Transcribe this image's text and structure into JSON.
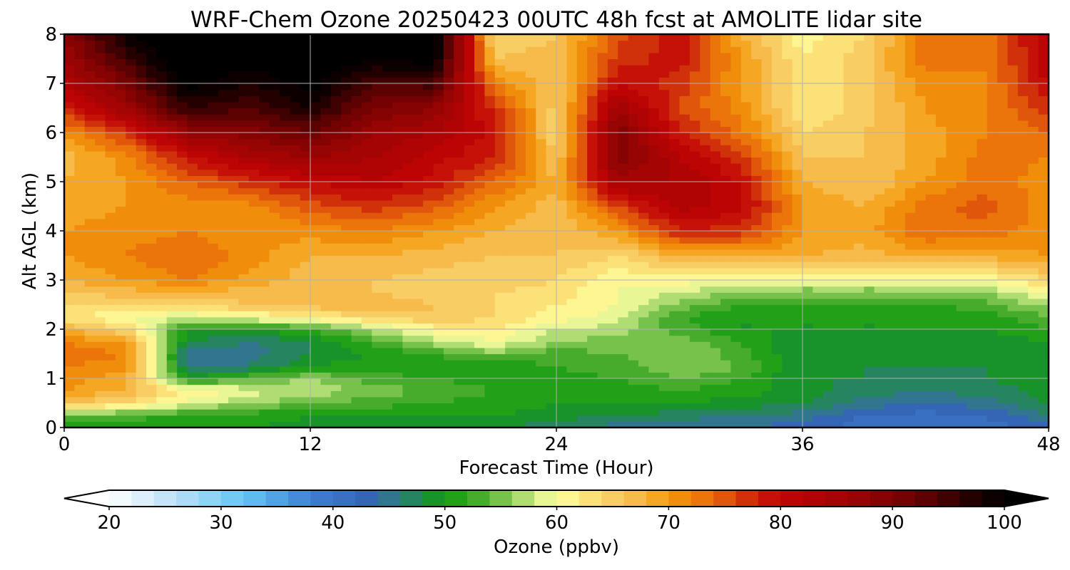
{
  "chart_data": {
    "type": "heatmap",
    "title": "WRF-Chem Ozone  20250423 00UTC 48h fcst at AMOLITE lidar site",
    "xlabel": "Forecast Time (Hour)",
    "ylabel": "Alt AGL (km)",
    "xlim": [
      0,
      48
    ],
    "ylim": [
      0,
      8
    ],
    "xticks": [
      0,
      12,
      24,
      36,
      48
    ],
    "yticks": [
      0,
      1,
      2,
      3,
      4,
      5,
      6,
      7,
      8
    ],
    "grid": true,
    "x": [
      0,
      3,
      6,
      9,
      12,
      15,
      18,
      21,
      24,
      27,
      30,
      33,
      36,
      39,
      42,
      45,
      48
    ],
    "y": [
      0,
      0.25,
      0.5,
      0.75,
      1,
      1.25,
      1.5,
      1.75,
      2,
      2.25,
      2.5,
      2.75,
      3,
      3.5,
      4,
      4.5,
      5,
      5.5,
      6,
      6.5,
      7,
      7.5,
      8
    ],
    "z": [
      [
        49,
        50,
        50,
        50,
        49,
        48,
        49,
        48,
        47,
        45,
        44,
        44,
        43,
        41,
        40,
        41,
        43
      ],
      [
        55,
        53,
        52,
        51,
        50,
        50,
        50,
        50,
        49,
        48,
        47,
        46,
        45,
        42,
        41,
        42,
        46
      ],
      [
        66,
        64,
        59,
        56,
        54,
        53,
        52,
        51,
        50,
        50,
        50,
        49,
        48,
        45,
        44,
        45,
        48
      ],
      [
        70,
        68,
        62,
        59,
        58,
        55,
        54,
        52,
        51,
        51,
        52,
        51,
        49,
        47,
        46,
        47,
        49
      ],
      [
        71,
        69,
        50,
        54,
        56,
        53,
        52,
        50,
        51,
        52,
        54,
        52,
        48,
        48,
        47,
        48,
        49
      ],
      [
        72,
        71,
        46,
        46,
        50,
        51,
        50,
        50,
        52,
        53,
        56,
        54,
        48,
        48,
        48,
        48,
        49
      ],
      [
        73,
        72,
        45,
        45,
        48,
        50,
        52,
        55,
        53,
        54,
        56,
        53,
        48,
        48,
        48,
        48,
        49
      ],
      [
        72,
        70,
        48,
        46,
        48,
        53,
        57,
        60,
        56,
        55,
        55,
        52,
        48,
        48,
        48,
        48,
        50
      ],
      [
        68,
        64,
        50,
        50,
        52,
        57,
        61,
        62,
        58,
        57,
        53,
        50,
        50,
        50,
        50,
        50,
        52
      ],
      [
        63,
        60,
        58,
        60,
        62,
        64,
        66,
        64,
        61,
        59,
        52,
        50,
        50,
        50,
        50,
        51,
        54
      ],
      [
        64,
        64,
        64,
        66,
        67,
        68,
        66,
        64,
        62,
        60,
        55,
        52,
        52,
        52,
        52,
        53,
        57
      ],
      [
        66,
        67,
        68,
        67,
        66,
        66,
        65,
        64,
        63,
        60,
        58,
        55,
        55,
        55,
        55,
        56,
        60
      ],
      [
        68,
        70,
        72,
        69,
        67,
        66,
        65,
        65,
        64,
        60,
        61,
        60,
        59,
        59,
        59,
        60,
        64
      ],
      [
        70,
        72,
        74,
        71,
        68,
        68,
        67,
        66,
        66,
        64,
        68,
        69,
        68,
        67,
        69,
        69,
        70
      ],
      [
        70,
        71,
        72,
        70,
        71,
        72,
        70,
        68,
        66,
        70,
        78,
        77,
        70,
        69,
        74,
        73,
        71
      ],
      [
        69,
        70,
        71,
        71,
        75,
        77,
        75,
        70,
        67,
        76,
        83,
        81,
        70,
        68,
        73,
        75,
        71
      ],
      [
        68,
        70,
        74,
        77,
        80,
        82,
        79,
        74,
        68,
        85,
        84,
        80,
        68,
        66,
        70,
        73,
        71
      ],
      [
        67,
        71,
        79,
        84,
        86,
        84,
        81,
        78,
        66,
        90,
        82,
        77,
        66,
        66,
        69,
        73,
        72
      ],
      [
        71,
        77,
        87,
        89,
        92,
        86,
        84,
        79,
        64,
        90,
        78,
        73,
        64,
        66,
        69,
        72,
        74
      ],
      [
        78,
        86,
        96,
        94,
        98,
        90,
        88,
        77,
        65,
        86,
        76,
        71,
        62,
        65,
        70,
        72,
        77
      ],
      [
        83,
        90,
        101,
        98,
        101,
        94,
        95,
        72,
        66,
        80,
        77,
        70,
        62,
        65,
        71,
        72,
        80
      ],
      [
        86,
        95,
        104,
        101,
        103,
        100,
        101,
        66,
        67,
        77,
        79,
        70,
        62,
        65,
        73,
        72,
        82
      ],
      [
        88,
        99,
        106,
        103,
        104,
        102,
        103,
        64,
        66,
        75,
        79,
        68,
        61,
        64,
        73,
        73,
        82
      ]
    ],
    "colorbar": {
      "label": "Ozone  (ppbv)",
      "min": 20,
      "max": 100,
      "step": 2,
      "ticks": [
        20,
        30,
        40,
        50,
        60,
        70,
        80,
        90,
        100
      ],
      "extend": "both",
      "stops": [
        [
          20,
          "#ffffff"
        ],
        [
          26,
          "#b9dff6"
        ],
        [
          32,
          "#64c6f4"
        ],
        [
          38,
          "#3f7fd3"
        ],
        [
          43,
          "#3566b5"
        ],
        [
          46,
          "#2f7d7b"
        ],
        [
          50,
          "#0f9a0f"
        ],
        [
          53,
          "#47ac2b"
        ],
        [
          56,
          "#8dcd5a"
        ],
        [
          58,
          "#d3ed8c"
        ],
        [
          60,
          "#ffffa0"
        ],
        [
          63,
          "#fbe178"
        ],
        [
          66,
          "#f7c35a"
        ],
        [
          68,
          "#f6b33c"
        ],
        [
          70,
          "#f39a0c"
        ],
        [
          74,
          "#e8690b"
        ],
        [
          78,
          "#c81d0a"
        ],
        [
          80,
          "#c20404"
        ],
        [
          86,
          "#9e0404"
        ],
        [
          92,
          "#6c0202"
        ],
        [
          96,
          "#300000"
        ],
        [
          100,
          "#000000"
        ]
      ]
    }
  }
}
